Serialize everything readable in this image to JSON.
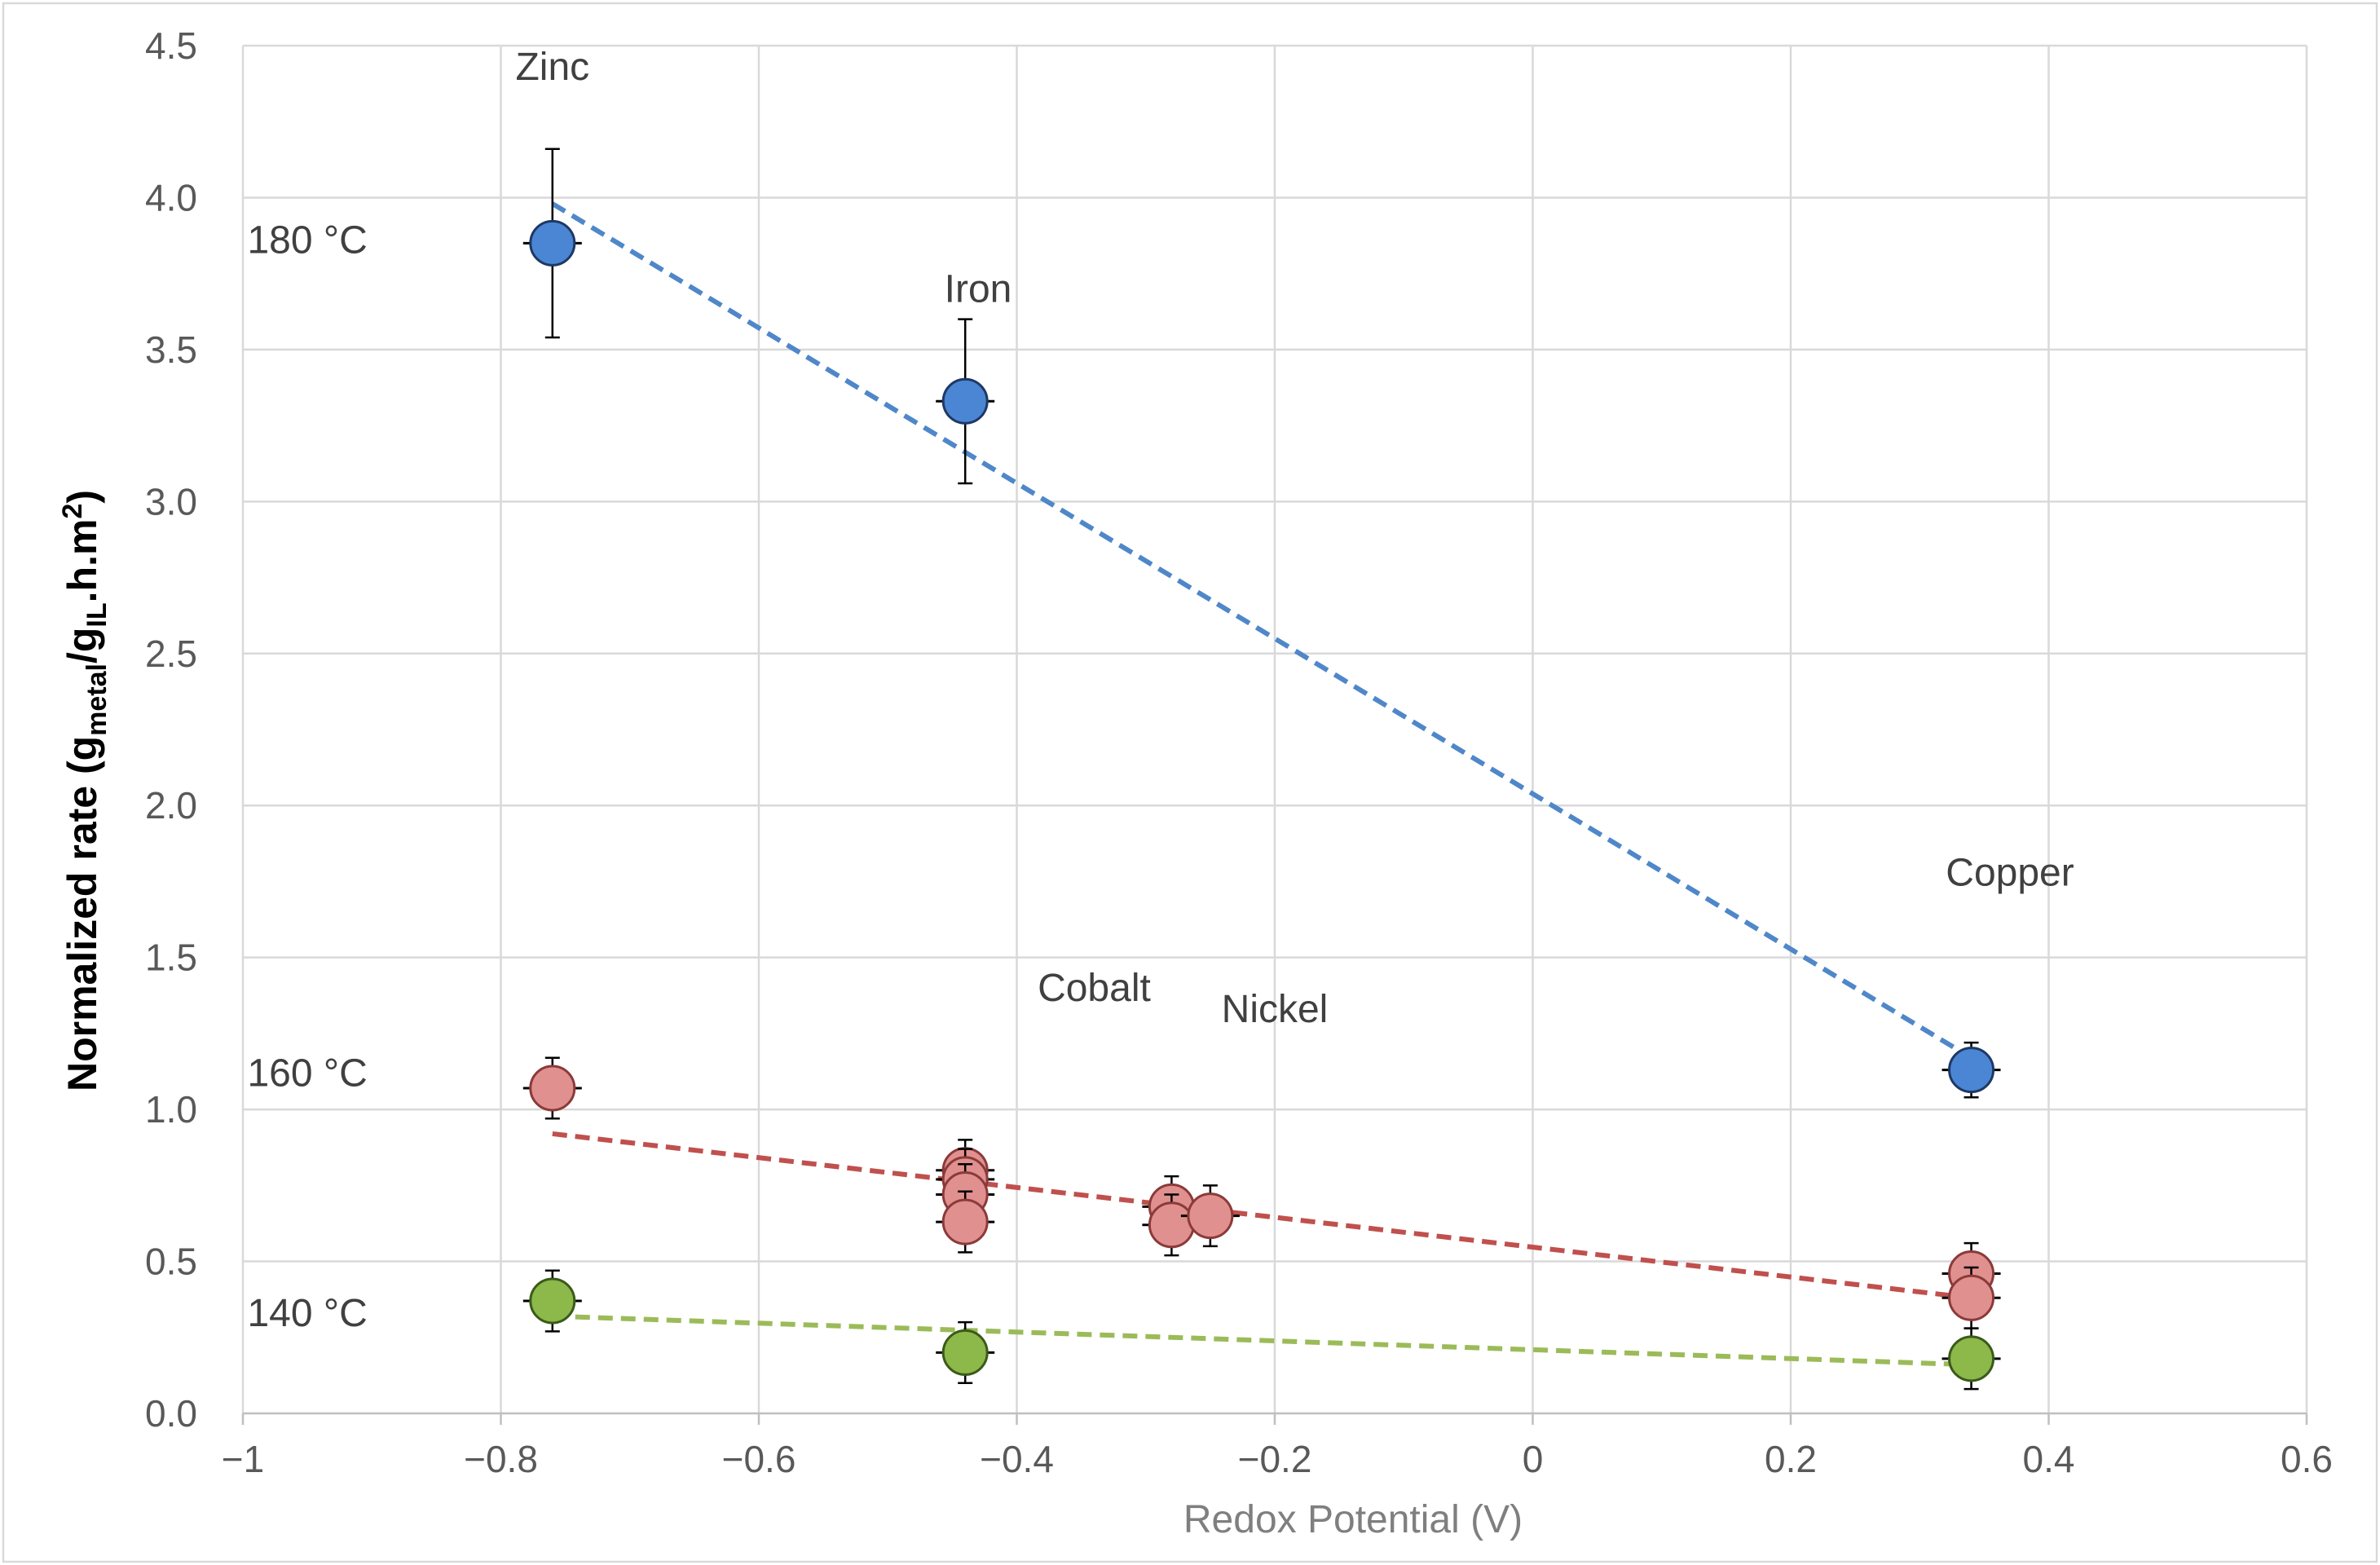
{
  "chart_data": {
    "type": "scatter",
    "title": "",
    "xlabel": "Redox Potential (V)",
    "ylabel": {
      "prefix": "Normalized rate (g",
      "sub1": "metal",
      "mid": "/g",
      "sub2": "IL",
      "mid2": ".h.m",
      "sup": "2",
      "suffix": ")"
    },
    "xlim": [
      -1,
      0.6
    ],
    "ylim": [
      0,
      4.5
    ],
    "xticks": [
      -1,
      -0.8,
      -0.6,
      -0.4,
      -0.2,
      0,
      0.2,
      0.4,
      0.6
    ],
    "xtick_labels": [
      "−1",
      "−0.8",
      "−0.6",
      "−0.4",
      "−0.2",
      "0",
      "0.2",
      "0.4",
      "0.6"
    ],
    "yticks": [
      0,
      0.5,
      1,
      1.5,
      2,
      2.5,
      3,
      3.5,
      4,
      4.5
    ],
    "ytick_labels": [
      "0.0",
      "0.5",
      "1.0",
      "1.5",
      "2.0",
      "2.5",
      "3.0",
      "3.5",
      "4.0",
      "4.5"
    ],
    "grid": true,
    "legend": "none",
    "series": [
      {
        "name": "180 °C",
        "color": "#4a86d4",
        "edge": "#1f3864",
        "trend": {
          "x": [
            -0.76,
            0.34
          ],
          "y": [
            3.98,
            1.17
          ],
          "color": "#4f87c9"
        },
        "points": [
          {
            "x": -0.76,
            "y": 3.85,
            "yerr": 0.31
          },
          {
            "x": -0.44,
            "y": 3.33,
            "yerr": 0.27
          },
          {
            "x": 0.34,
            "y": 1.13,
            "yerr": 0.09
          }
        ]
      },
      {
        "name": "160 °C",
        "color": "#e0908e",
        "edge": "#8b3a3a",
        "trend": {
          "x": [
            -0.76,
            0.34
          ],
          "y": [
            0.92,
            0.38
          ],
          "color": "#c0504d"
        },
        "points": [
          {
            "x": -0.76,
            "y": 1.07,
            "yerr": 0.1
          },
          {
            "x": -0.44,
            "y": 0.8,
            "yerr": 0.1
          },
          {
            "x": -0.44,
            "y": 0.77,
            "yerr": 0.1
          },
          {
            "x": -0.44,
            "y": 0.72,
            "yerr": 0.1
          },
          {
            "x": -0.44,
            "y": 0.63,
            "yerr": 0.1
          },
          {
            "x": -0.28,
            "y": 0.68,
            "yerr": 0.1
          },
          {
            "x": -0.28,
            "y": 0.62,
            "yerr": 0.1
          },
          {
            "x": -0.25,
            "y": 0.65,
            "yerr": 0.1
          },
          {
            "x": 0.34,
            "y": 0.46,
            "yerr": 0.1
          },
          {
            "x": 0.34,
            "y": 0.38,
            "yerr": 0.1
          }
        ]
      },
      {
        "name": "140 °C",
        "color": "#8db84a",
        "edge": "#3a5a1a",
        "trend": {
          "x": [
            -0.76,
            0.34
          ],
          "y": [
            0.32,
            0.16
          ],
          "color": "#9bbb59"
        },
        "points": [
          {
            "x": -0.76,
            "y": 0.37,
            "yerr": 0.1
          },
          {
            "x": -0.44,
            "y": 0.2,
            "yerr": 0.1
          },
          {
            "x": 0.34,
            "y": 0.18,
            "yerr": 0.1
          }
        ]
      }
    ],
    "annotations": [
      {
        "id": "zinc",
        "text": "Zinc",
        "x": -0.76,
        "y": 4.43
      },
      {
        "id": "iron",
        "text": "Iron",
        "x": -0.43,
        "y": 3.7
      },
      {
        "id": "cobalt",
        "text": "Cobalt",
        "x": -0.34,
        "y": 1.4
      },
      {
        "id": "nickel",
        "text": "Nickel",
        "x": -0.2,
        "y": 1.33
      },
      {
        "id": "copper",
        "text": "Copper",
        "x": 0.37,
        "y": 1.78
      },
      {
        "id": "t180",
        "text": "180 °C",
        "x": -0.95,
        "y": 3.86
      },
      {
        "id": "t160",
        "text": "160 °C",
        "x": -0.95,
        "y": 1.12
      },
      {
        "id": "t140",
        "text": "140 °C",
        "x": -0.95,
        "y": 0.33
      }
    ]
  }
}
